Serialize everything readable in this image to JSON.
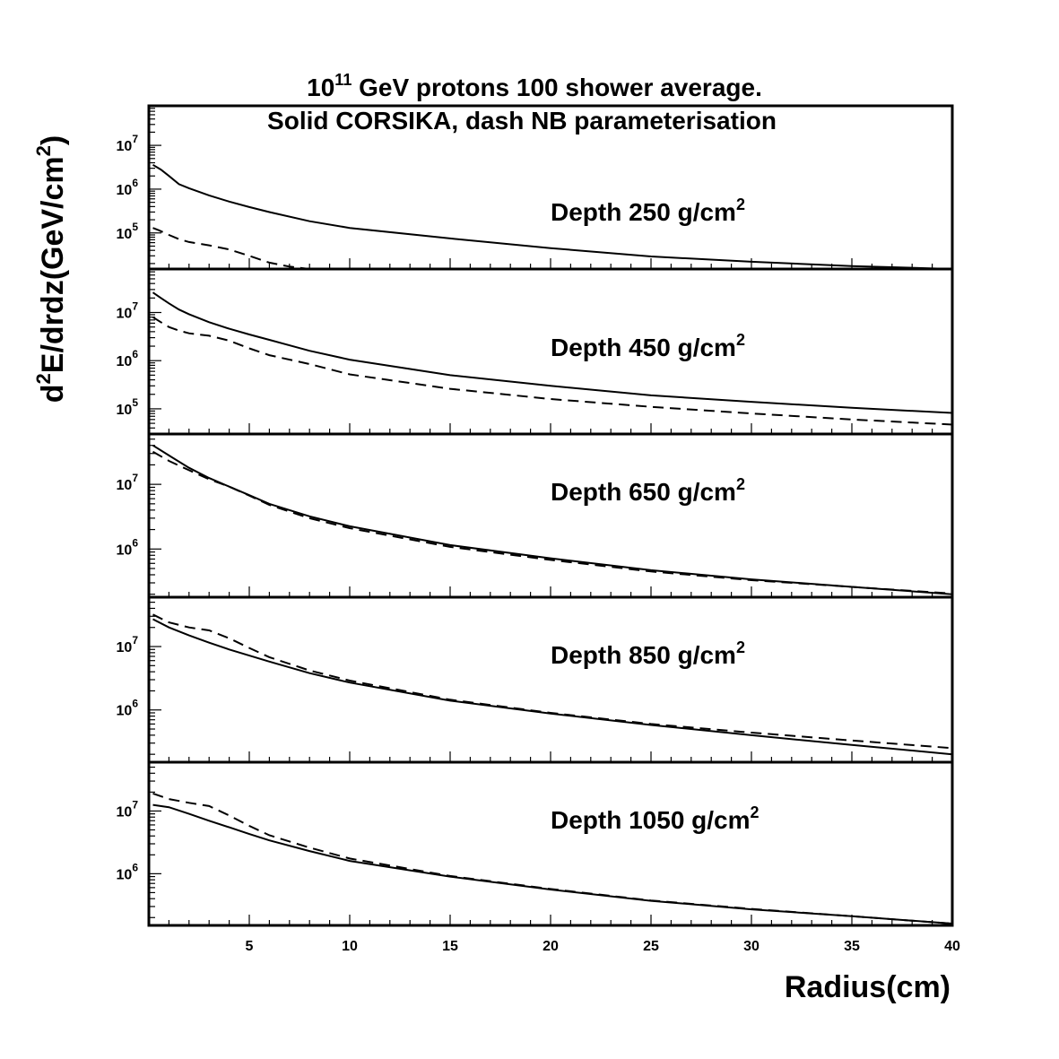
{
  "chart_data": {
    "type": "line",
    "title": {
      "line1_base": "10",
      "line1_exp": "11",
      "line1_rest": " GeV protons 100 shower average.",
      "line2": "Solid CORSIKA, dash NB parameterisation"
    },
    "ylabel": {
      "pre": "d",
      "sup1": "2",
      "mid": "E/drdz(GeV/cm",
      "sup2": "2",
      "post": ")"
    },
    "xlabel": "Radius(cm)",
    "xlim": [
      0,
      40
    ],
    "xticks": [
      "5",
      "10",
      "15",
      "20",
      "25",
      "30",
      "35",
      "40"
    ],
    "yscale": "log",
    "panels": [
      {
        "label_base": "Depth 250 g/cm",
        "label_exp": "2",
        "ylim": [
          15000,
          80000000
        ],
        "yticks": [
          {
            "base": "10",
            "exp": "5",
            "value": 100000
          },
          {
            "base": "10",
            "exp": "6",
            "value": 1000000
          },
          {
            "base": "10",
            "exp": "7",
            "value": 10000000
          }
        ],
        "series": [
          {
            "style": "solid",
            "x": [
              0.2,
              0.6,
              1.0,
              1.5,
              2,
              3,
              4,
              5,
              6,
              8,
              10,
              15,
              20,
              25,
              30,
              35,
              40
            ],
            "y": [
              3600000,
              2800000,
              2000000,
              1300000,
              1050000,
              720000,
              520000,
              390000,
              300000,
              185000,
              130000,
              75000,
              45000,
              29000,
              22000,
              17500,
              15000
            ]
          },
          {
            "style": "dashed",
            "x": [
              0.2,
              0.5,
              1.0,
              1.5,
              2,
              3,
              4,
              5,
              6,
              7,
              8
            ],
            "y": [
              130000,
              115000,
              90000,
              72000,
              62000,
              52000,
              42000,
              30000,
              21000,
              17000,
              15000
            ]
          }
        ]
      },
      {
        "label_base": "Depth 450 g/cm",
        "label_exp": "2",
        "ylim": [
          30000,
          80000000
        ],
        "yticks": [
          {
            "base": "10",
            "exp": "5",
            "value": 100000
          },
          {
            "base": "10",
            "exp": "6",
            "value": 1000000
          },
          {
            "base": "10",
            "exp": "7",
            "value": 10000000
          }
        ],
        "series": [
          {
            "style": "solid",
            "x": [
              0.2,
              0.6,
              1,
              1.5,
              2,
              3,
              4,
              5,
              6,
              8,
              10,
              15,
              20,
              25,
              30,
              35,
              40
            ],
            "y": [
              26000000,
              20000000,
              15500000,
              11500000,
              9200000,
              6300000,
              4600000,
              3500000,
              2700000,
              1600000,
              1050000,
              500000,
              300000,
              190000,
              140000,
              105000,
              82000
            ]
          },
          {
            "style": "dashed",
            "x": [
              0.2,
              0.6,
              1,
              1.5,
              2,
              3,
              4,
              5,
              6,
              8,
              10,
              15,
              20,
              25,
              30,
              35,
              40
            ],
            "y": [
              8000000,
              6300000,
              5000000,
              4200000,
              3700000,
              3300000,
              2600000,
              1800000,
              1300000,
              850000,
              520000,
              260000,
              160000,
              110000,
              80000,
              60000,
              47000
            ]
          }
        ]
      },
      {
        "label_base": "Depth 650 g/cm",
        "label_exp": "2",
        "ylim": [
          180000,
          60000000
        ],
        "yticks": [
          {
            "base": "10",
            "exp": "6",
            "value": 1000000
          },
          {
            "base": "10",
            "exp": "7",
            "value": 10000000
          }
        ],
        "series": [
          {
            "style": "solid",
            "x": [
              0.2,
              1,
              2,
              3,
              4,
              5,
              6,
              8,
              10,
              15,
              20,
              25,
              30,
              35,
              40
            ],
            "y": [
              40000000,
              28000000,
              18000000,
              12500000,
              9200000,
              6800000,
              5000000,
              3200000,
              2250000,
              1150000,
              720000,
              470000,
              340000,
              260000,
              200000
            ]
          },
          {
            "style": "dashed",
            "x": [
              0.2,
              1,
              2,
              3,
              4,
              5,
              6,
              8,
              10,
              15,
              20,
              25,
              30,
              35,
              40
            ],
            "y": [
              32000000,
              23000000,
              16500000,
              12000000,
              9200000,
              6700000,
              4800000,
              3000000,
              2100000,
              1080000,
              680000,
              450000,
              330000,
              260000,
              205000
            ]
          }
        ]
      },
      {
        "label_base": "Depth 850 g/cm",
        "label_exp": "2",
        "ylim": [
          150000,
          60000000
        ],
        "yticks": [
          {
            "base": "10",
            "exp": "6",
            "value": 1000000
          },
          {
            "base": "10",
            "exp": "7",
            "value": 10000000
          }
        ],
        "series": [
          {
            "style": "solid",
            "x": [
              0.2,
              1,
              2,
              3,
              4,
              5,
              6,
              8,
              10,
              15,
              20,
              25,
              30,
              35,
              40
            ],
            "y": [
              27000000,
              20000000,
              15000000,
              11500000,
              9000000,
              7200000,
              5800000,
              3800000,
              2700000,
              1400000,
              880000,
              580000,
              400000,
              280000,
              200000
            ]
          },
          {
            "style": "dashed",
            "x": [
              0.2,
              1,
              2,
              3,
              4,
              5,
              6,
              8,
              10,
              15,
              20,
              25,
              30,
              35,
              40
            ],
            "y": [
              32000000,
              24000000,
              20000000,
              18000000,
              13500000,
              9500000,
              6800000,
              4200000,
              2900000,
              1450000,
              900000,
              600000,
              440000,
              330000,
              250000
            ]
          }
        ]
      },
      {
        "label_base": "Depth 1050 g/cm",
        "label_exp": "2",
        "ylim": [
          150000,
          60000000
        ],
        "yticks": [
          {
            "base": "10",
            "exp": "6",
            "value": 1000000
          },
          {
            "base": "10",
            "exp": "7",
            "value": 10000000
          }
        ],
        "series": [
          {
            "style": "solid",
            "x": [
              0.2,
              1,
              2,
              3,
              4,
              5,
              6,
              8,
              10,
              15,
              20,
              25,
              30,
              35,
              40
            ],
            "y": [
              12500000,
              11500000,
              9000000,
              7000000,
              5500000,
              4300000,
              3400000,
              2300000,
              1600000,
              900000,
              560000,
              370000,
              270000,
              210000,
              160000
            ]
          },
          {
            "style": "dashed",
            "x": [
              0.2,
              1,
              2,
              3,
              4,
              5,
              6,
              8,
              10,
              15,
              20,
              25,
              30,
              35,
              40
            ],
            "y": [
              19000000,
              15500000,
              13500000,
              12000000,
              8500000,
              5800000,
              4100000,
              2600000,
              1750000,
              920000,
              570000,
              375000,
              275000,
              210000,
              160000
            ]
          }
        ]
      }
    ]
  }
}
